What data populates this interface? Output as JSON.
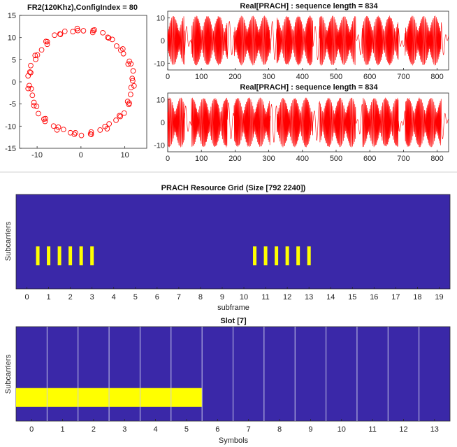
{
  "colors": {
    "signal": "#ff0000",
    "grid_bg": "#3a28a8",
    "highlight": "#ffff00",
    "separator": "#c8c8e8",
    "frame": "#262626"
  },
  "chart_data": [
    {
      "type": "scatter",
      "title": "FR2(120Khz),ConfigIndex = 80",
      "xlim": [
        -14,
        15
      ],
      "ylim": [
        -15,
        15
      ],
      "xticks": [
        -10,
        0,
        10
      ],
      "yticks": [
        15,
        10,
        5,
        0,
        -5,
        -10,
        -15
      ],
      "radius": 11.8,
      "points": 72,
      "marker": "circle"
    },
    {
      "type": "line",
      "title": "Real[PRACH] : sequence length = 834",
      "xlim": [
        0,
        834
      ],
      "ylim": [
        -13,
        13
      ],
      "xticks": [
        0,
        100,
        200,
        300,
        400,
        500,
        600,
        700,
        800
      ],
      "yticks": [
        10,
        0,
        -10
      ],
      "bursts": [
        [
          0,
          50
        ],
        [
          70,
          177
        ],
        [
          197,
          304
        ],
        [
          324,
          431
        ],
        [
          451,
          558
        ],
        [
          578,
          685
        ],
        [
          705,
          812
        ]
      ],
      "amplitude": 11
    },
    {
      "type": "line",
      "title": "Real[PRACH] : sequence length = 834",
      "xlim": [
        0,
        834
      ],
      "ylim": [
        -13,
        13
      ],
      "xticks": [
        0,
        100,
        200,
        300,
        400,
        500,
        600,
        700,
        800
      ],
      "yticks": [
        10,
        0,
        -10
      ],
      "bursts": [
        [
          0,
          50
        ],
        [
          70,
          177
        ],
        [
          197,
          304
        ],
        [
          324,
          431
        ],
        [
          451,
          558
        ],
        [
          578,
          685
        ],
        [
          705,
          812
        ]
      ],
      "amplitude": 11
    },
    {
      "type": "heatmap",
      "title": "PRACH Resource Grid (Size [792 2240])",
      "xlabel": "subframe",
      "ylabel": "Subcarriers",
      "xlim": [
        -0.5,
        19.5
      ],
      "xticks": [
        "0",
        "1",
        "2",
        "3",
        "4",
        "5",
        "6",
        "7",
        "8",
        "9",
        "10",
        "11",
        "12",
        "13",
        "14",
        "15",
        "16",
        "17",
        "18",
        "19"
      ],
      "occupied_subframes": [
        0.5,
        1.0,
        1.5,
        2.0,
        2.5,
        3.0,
        10.5,
        11.0,
        11.5,
        12.0,
        12.5,
        13.0
      ],
      "occupied_band": [
        0.55,
        0.75
      ]
    },
    {
      "type": "heatmap",
      "title": "Slot [7]",
      "xlabel": "Symbols",
      "ylabel": "Subcarriers",
      "xlim": [
        -0.5,
        13.5
      ],
      "xticks": [
        "0",
        "1",
        "2",
        "3",
        "4",
        "5",
        "6",
        "7",
        "8",
        "9",
        "10",
        "11",
        "12",
        "13"
      ],
      "occupied_symbols": [
        0,
        5
      ],
      "occupied_band": [
        0.65,
        0.85
      ]
    }
  ]
}
